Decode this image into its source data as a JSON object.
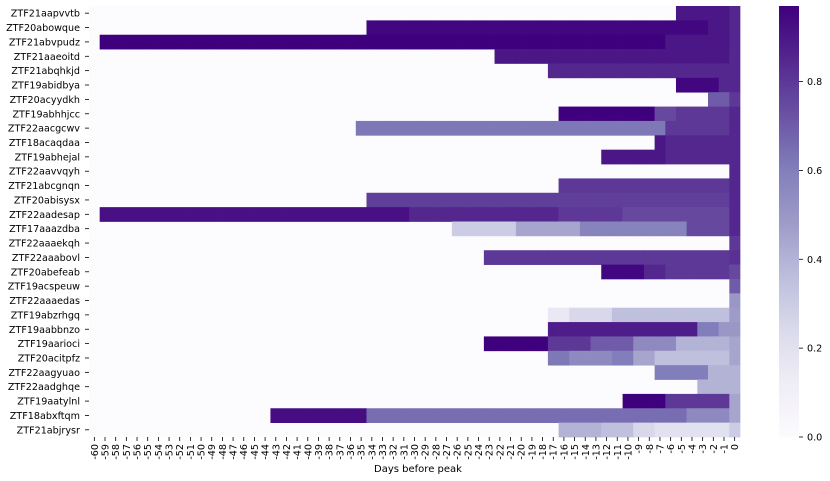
{
  "chart_data": {
    "type": "heatmap",
    "xlabel": "Days before peak",
    "ylabel": "",
    "x_ticks": [
      -60,
      -59,
      -58,
      -57,
      -56,
      -55,
      -54,
      -53,
      -52,
      -51,
      -50,
      -49,
      -48,
      -47,
      -46,
      -45,
      -44,
      -43,
      -42,
      -41,
      -40,
      -39,
      -38,
      -37,
      -36,
      -35,
      -34,
      -33,
      -32,
      -31,
      -30,
      -29,
      -28,
      -27,
      -26,
      -25,
      -24,
      -23,
      -22,
      -21,
      -20,
      -19,
      -18,
      -17,
      -16,
      -15,
      -14,
      -13,
      -12,
      -11,
      -10,
      -9,
      -8,
      -7,
      -6,
      -5,
      -4,
      -3,
      -2,
      -1,
      0
    ],
    "x_range": [
      -60,
      0
    ],
    "colormap": "Purples",
    "colorbar": {
      "range": [
        0,
        0.97
      ],
      "ticks": [
        "0.0",
        "0.2",
        "0.4",
        "0.6",
        "0.8"
      ]
    },
    "colors": {
      "low": "#fcfbfd",
      "high": "#3f007d"
    },
    "empty_value": 0.0,
    "rows": [
      {
        "label": "ZTF21aapvvtb",
        "segments": [
          [
            -5,
            -1,
            0.9
          ],
          [
            0,
            0,
            0.85
          ]
        ]
      },
      {
        "label": "ZTF20abowque",
        "segments": [
          [
            -34,
            -3,
            0.95
          ],
          [
            -2,
            -1,
            0.9
          ],
          [
            0,
            0,
            0.85
          ]
        ]
      },
      {
        "label": "ZTF21abvpudz",
        "segments": [
          [
            -59,
            -7,
            0.97
          ],
          [
            -6,
            -1,
            0.9
          ],
          [
            0,
            0,
            0.85
          ]
        ]
      },
      {
        "label": "ZTF21aaeoitd",
        "segments": [
          [
            -22,
            -1,
            0.9
          ],
          [
            0,
            0,
            0.85
          ]
        ]
      },
      {
        "label": "ZTF21abqhkjd",
        "segments": [
          [
            -17,
            -1,
            0.85
          ],
          [
            0,
            0,
            0.85
          ]
        ]
      },
      {
        "label": "ZTF19abidbya",
        "segments": [
          [
            -5,
            -2,
            0.95
          ],
          [
            -1,
            0,
            0.85
          ]
        ]
      },
      {
        "label": "ZTF20acyydkh",
        "segments": [
          [
            -2,
            -1,
            0.7
          ],
          [
            0,
            0,
            0.8
          ]
        ]
      },
      {
        "label": "ZTF19abhhjcc",
        "segments": [
          [
            -16,
            -8,
            0.97
          ],
          [
            -7,
            -6,
            0.75
          ],
          [
            -5,
            -1,
            0.8
          ],
          [
            0,
            0,
            0.85
          ]
        ]
      },
      {
        "label": "ZTF22aacgcwv",
        "segments": [
          [
            -35,
            -7,
            0.62
          ],
          [
            -6,
            -1,
            0.8
          ],
          [
            0,
            0,
            0.85
          ]
        ]
      },
      {
        "label": "ZTF18acaqdaa",
        "segments": [
          [
            -7,
            -7,
            0.9
          ],
          [
            -6,
            -1,
            0.85
          ],
          [
            0,
            0,
            0.85
          ]
        ]
      },
      {
        "label": "ZTF19abhejal",
        "segments": [
          [
            -12,
            -7,
            0.9
          ],
          [
            -6,
            -1,
            0.85
          ],
          [
            0,
            0,
            0.85
          ]
        ]
      },
      {
        "label": "ZTF22aavvqyh",
        "segments": [
          [
            0,
            0,
            0.85
          ]
        ]
      },
      {
        "label": "ZTF21abcgnqn",
        "segments": [
          [
            -16,
            -1,
            0.8
          ],
          [
            0,
            0,
            0.85
          ]
        ]
      },
      {
        "label": "ZTF20abisysx",
        "segments": [
          [
            -34,
            -1,
            0.78
          ],
          [
            0,
            0,
            0.85
          ]
        ]
      },
      {
        "label": "ZTF22aadesap",
        "segments": [
          [
            -59,
            -31,
            0.92
          ],
          [
            -30,
            -17,
            0.85
          ],
          [
            -16,
            -11,
            0.8
          ],
          [
            -10,
            -1,
            0.75
          ],
          [
            0,
            0,
            0.85
          ]
        ]
      },
      {
        "label": "ZTF17aaazdba",
        "segments": [
          [
            -26,
            -21,
            0.3
          ],
          [
            -20,
            -15,
            0.45
          ],
          [
            -14,
            -5,
            0.58
          ],
          [
            -4,
            -1,
            0.75
          ],
          [
            0,
            0,
            0.85
          ]
        ]
      },
      {
        "label": "ZTF22aaaekqh",
        "segments": [
          [
            0,
            0,
            0.8
          ]
        ]
      },
      {
        "label": "ZTF22aaabovl",
        "segments": [
          [
            -23,
            -1,
            0.8
          ],
          [
            0,
            0,
            0.82
          ]
        ]
      },
      {
        "label": "ZTF20abefeab",
        "segments": [
          [
            -12,
            -9,
            0.95
          ],
          [
            -8,
            -7,
            0.85
          ],
          [
            -6,
            -1,
            0.8
          ],
          [
            0,
            0,
            0.75
          ]
        ]
      },
      {
        "label": "ZTF19acspeuw",
        "segments": [
          [
            0,
            0,
            0.7
          ]
        ]
      },
      {
        "label": "ZTF22aaaedas",
        "segments": [
          [
            0,
            0,
            0.5
          ]
        ]
      },
      {
        "label": "ZTF19abzrhgq",
        "segments": [
          [
            -17,
            -16,
            0.15
          ],
          [
            -15,
            -12,
            0.25
          ],
          [
            -11,
            -1,
            0.35
          ],
          [
            0,
            0,
            0.48
          ]
        ]
      },
      {
        "label": "ZTF19aabbnzo",
        "segments": [
          [
            -17,
            -4,
            0.88
          ],
          [
            -3,
            -2,
            0.6
          ],
          [
            -1,
            -1,
            0.5
          ],
          [
            0,
            0,
            0.5
          ]
        ]
      },
      {
        "label": "ZTF19aarioci",
        "segments": [
          [
            -23,
            -18,
            0.97
          ],
          [
            -17,
            -14,
            0.8
          ],
          [
            -13,
            -10,
            0.7
          ],
          [
            -9,
            -6,
            0.55
          ],
          [
            -5,
            -1,
            0.4
          ],
          [
            0,
            0,
            0.45
          ]
        ]
      },
      {
        "label": "ZTF20acitpfz",
        "segments": [
          [
            -17,
            -16,
            0.62
          ],
          [
            -15,
            -12,
            0.55
          ],
          [
            -11,
            -10,
            0.6
          ],
          [
            -9,
            -8,
            0.45
          ],
          [
            -7,
            -1,
            0.35
          ],
          [
            0,
            0,
            0.45
          ]
        ]
      },
      {
        "label": "ZTF22aagyuao",
        "segments": [
          [
            -7,
            -3,
            0.6
          ],
          [
            -2,
            -1,
            0.4
          ],
          [
            0,
            0,
            0.4
          ]
        ]
      },
      {
        "label": "ZTF22aadghqe",
        "segments": [
          [
            -3,
            -1,
            0.4
          ],
          [
            0,
            0,
            0.4
          ]
        ]
      },
      {
        "label": "ZTF19aatylnl",
        "segments": [
          [
            -10,
            -7,
            0.97
          ],
          [
            -6,
            -1,
            0.8
          ],
          [
            0,
            0,
            0.45
          ]
        ]
      },
      {
        "label": "ZTF18abxftqm",
        "segments": [
          [
            -43,
            -35,
            0.93
          ],
          [
            -34,
            -5,
            0.65
          ],
          [
            -4,
            -1,
            0.55
          ],
          [
            0,
            0,
            0.45
          ]
        ]
      },
      {
        "label": "ZTF21abjrysr",
        "segments": [
          [
            -16,
            -13,
            0.4
          ],
          [
            -12,
            -10,
            0.35
          ],
          [
            -9,
            -8,
            0.25
          ],
          [
            -7,
            -1,
            0.2
          ],
          [
            0,
            0,
            0.3
          ]
        ]
      }
    ]
  }
}
